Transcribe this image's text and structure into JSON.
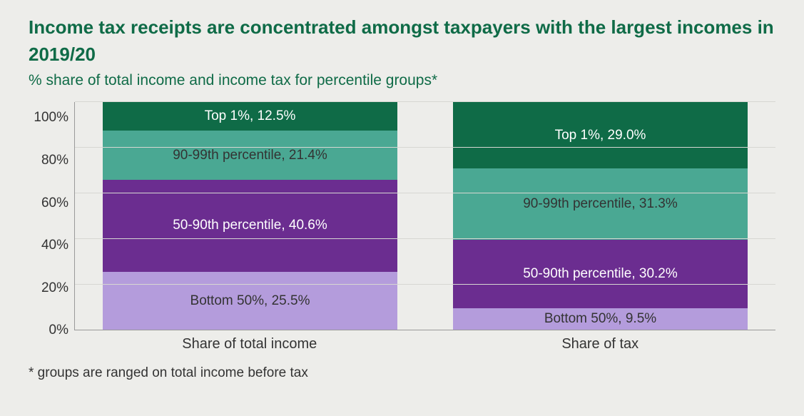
{
  "title": "Income tax receipts are concentrated amongst taxpayers with the largest incomes in 2019/20",
  "subtitle": "% share of total income and income tax for percentile groups*",
  "footnote": "* groups are ranged on total income before tax",
  "chart": {
    "type": "stacked-bar-100pct",
    "background_color": "#ededea",
    "title_color": "#0f6b47",
    "grid_color": "#d7d7d2",
    "axis_color": "#999999",
    "font_family": "Segoe UI",
    "label_fontsize": 19,
    "ylim": [
      0,
      100
    ],
    "ytick_step": 20,
    "yticks": [
      "0%",
      "20%",
      "40%",
      "60%",
      "80%",
      "100%"
    ],
    "categories": [
      "Share of total income",
      "Share of tax"
    ],
    "segments_order": [
      "bottom50",
      "p50_90",
      "p90_99",
      "top1"
    ],
    "segments": {
      "bottom50": {
        "label_prefix": "Bottom 50%",
        "color": "#b49cdc",
        "text_color": "#333333"
      },
      "p50_90": {
        "label_prefix": "50-90th percentile",
        "color": "#6b2d90",
        "text_color": "#ffffff"
      },
      "p90_99": {
        "label_prefix": "90-99th percentile",
        "color": "#4aa893",
        "text_color": "#333333"
      },
      "top1": {
        "label_prefix": "Top 1%",
        "color": "#0f6b47",
        "text_color": "#ffffff"
      }
    },
    "series": [
      {
        "category": "Share of total income",
        "values": {
          "bottom50": 25.5,
          "p50_90": 40.6,
          "p90_99": 21.4,
          "top1": 12.5
        }
      },
      {
        "category": "Share of tax",
        "values": {
          "bottom50": 9.5,
          "p50_90": 30.2,
          "p90_99": 31.3,
          "top1": 29.0
        }
      }
    ]
  }
}
